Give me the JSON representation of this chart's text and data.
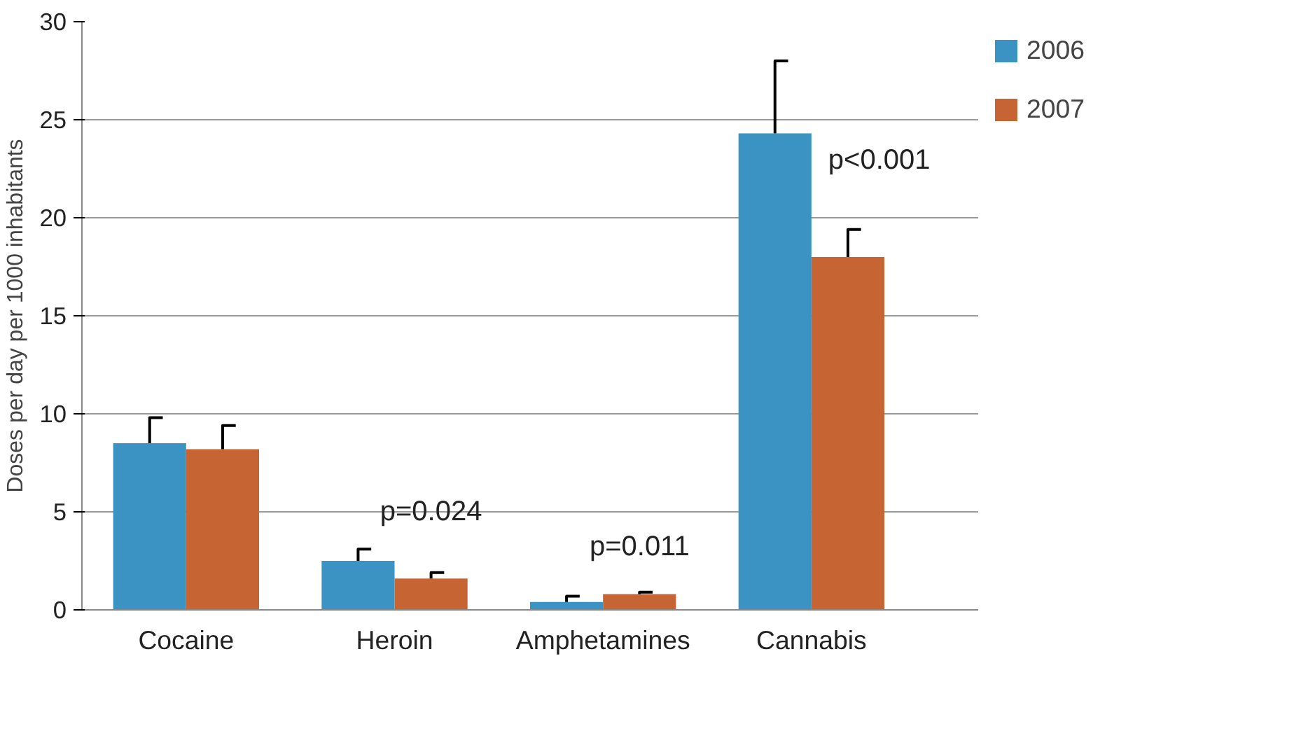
{
  "chart_data": {
    "type": "bar",
    "ylabel": "Doses per day per 1000 inhabitants",
    "categories": [
      "Cocaine",
      "Heroin",
      "Amphetamines",
      "Cannabis"
    ],
    "series": [
      {
        "name": "2006",
        "color": "#3a93c3",
        "values": [
          8.5,
          2.5,
          0.4,
          24.3
        ],
        "errors": [
          [
            8.5,
            9.8
          ],
          [
            2.5,
            3.1
          ],
          [
            0.4,
            0.7
          ],
          [
            24.3,
            28.0
          ]
        ]
      },
      {
        "name": "2007",
        "color": "#c66434",
        "values": [
          8.2,
          1.6,
          0.8,
          18.0
        ],
        "errors": [
          [
            8.2,
            9.4
          ],
          [
            1.6,
            1.9
          ],
          [
            0.8,
            0.9
          ],
          [
            18.0,
            19.4
          ]
        ]
      }
    ],
    "ylim": [
      0,
      30
    ],
    "yticks": [
      0,
      5,
      10,
      15,
      20,
      25,
      30
    ],
    "grid": "y",
    "legend": "right",
    "annotations": [
      "p=0.024",
      "p=0.011",
      {
        "text": "p<0.001",
        "x": "Cannabis",
        "y": 24.3
      }
    ]
  }
}
